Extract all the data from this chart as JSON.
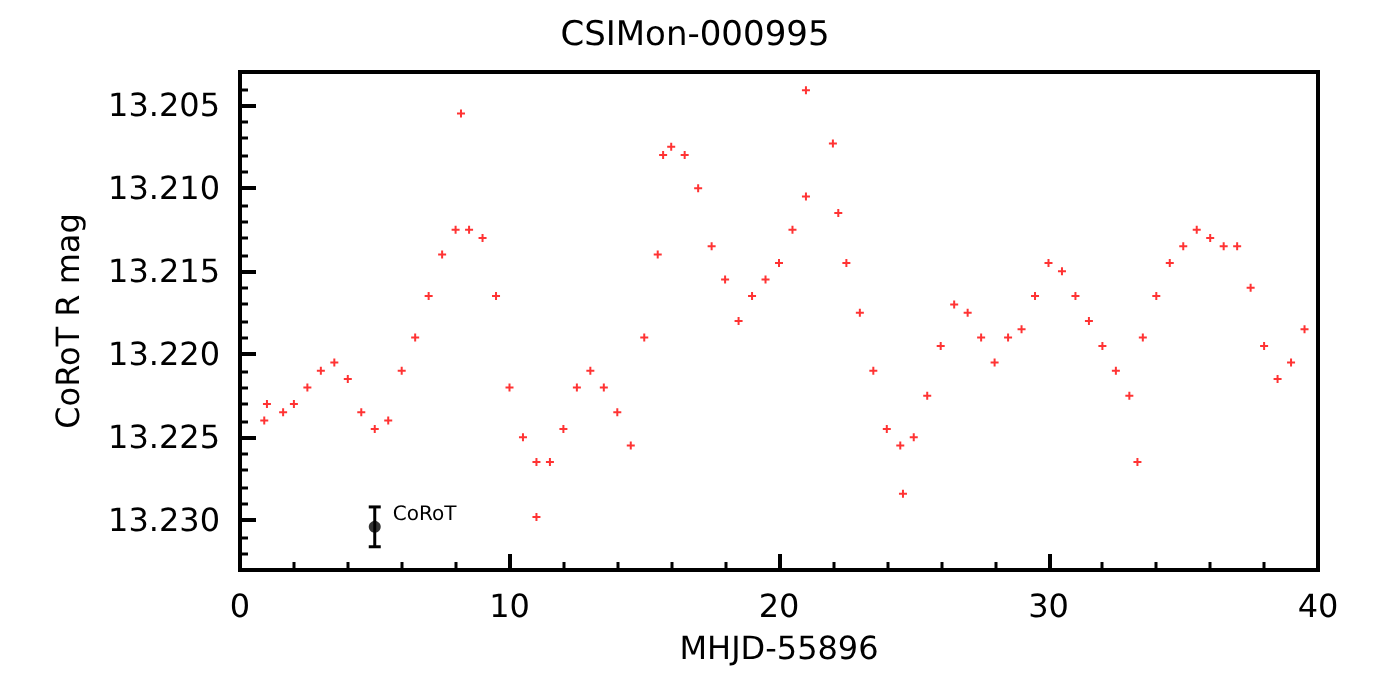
{
  "chart_data": {
    "type": "scatter",
    "title": "CSIMon-000995",
    "xlabel": "MHJD-55896",
    "ylabel": "CoRoT R mag",
    "xlim": [
      0,
      40
    ],
    "xticks": [
      0,
      10,
      20,
      30,
      40
    ],
    "ylim": [
      13.233,
      13.203
    ],
    "yticks": [
      13.205,
      {
        "value": 13.21,
        "label": "13.210"
      },
      13.215,
      {
        "value": 13.22,
        "label": "13.220"
      },
      13.225,
      {
        "value": 13.23,
        "label": "13.230"
      }
    ],
    "grid": false,
    "marker": "cross",
    "annotations": [
      {
        "text": "CoRoT",
        "x": 5,
        "y": 13.2304
      }
    ],
    "series": [
      {
        "color": "#ff0000",
        "x": [
          0.9,
          1.0,
          1.6,
          2.0,
          2.5,
          3.0,
          3.5,
          4.0,
          4.5,
          5.0,
          5.5,
          6.0,
          6.5,
          7.0,
          7.5,
          8.0,
          8.2,
          8.5,
          9.0,
          9.5,
          10.0,
          10.5,
          11.0,
          11.0,
          11.5,
          12.0,
          12.5,
          13.0,
          13.5,
          14.0,
          14.5,
          15.0,
          15.5,
          15.7,
          16.0,
          16.5,
          17.0,
          17.5,
          18.0,
          18.5,
          19.0,
          19.5,
          20.0,
          20.5,
          21.0,
          21.0,
          22.0,
          22.2,
          22.5,
          23.0,
          23.5,
          24.0,
          24.5,
          24.6,
          25.0,
          25.5,
          26.0,
          26.5,
          27.0,
          27.5,
          28.0,
          28.5,
          29.0,
          29.5,
          30.0,
          30.5,
          31.0,
          31.5,
          32.0,
          32.5,
          33.0,
          33.3,
          33.5,
          34.0,
          34.5,
          35.0,
          35.5,
          36.0,
          36.5,
          37.0,
          37.5,
          38.0,
          38.5,
          39.0,
          39.5
        ],
        "values": [
          13.224,
          13.223,
          13.2235,
          13.223,
          13.222,
          13.221,
          13.2205,
          13.2215,
          13.2235,
          13.2245,
          13.224,
          13.221,
          13.219,
          13.2165,
          13.214,
          13.2125,
          13.2055,
          13.2125,
          13.213,
          13.2165,
          13.222,
          13.225,
          13.2265,
          13.2298,
          13.2265,
          13.2245,
          13.222,
          13.221,
          13.222,
          13.2235,
          13.2255,
          13.219,
          13.214,
          13.208,
          13.2075,
          13.208,
          13.21,
          13.2135,
          13.2155,
          13.218,
          13.2165,
          13.2155,
          13.2145,
          13.2125,
          13.2105,
          13.2041,
          13.2073,
          13.2115,
          13.2145,
          13.2175,
          13.221,
          13.2245,
          13.2255,
          13.2284,
          13.225,
          13.2225,
          13.2195,
          13.217,
          13.2175,
          13.219,
          13.2205,
          13.219,
          13.2185,
          13.2165,
          13.2145,
          13.215,
          13.2165,
          13.218,
          13.2195,
          13.221,
          13.2225,
          13.2265,
          13.219,
          13.2165,
          13.2145,
          13.2135,
          13.2125,
          13.213,
          13.2135,
          13.2135,
          13.216,
          13.2195,
          13.2215,
          13.2205,
          13.2185
        ]
      },
      {
        "color": "#000000",
        "marker": "circle",
        "x": [
          5
        ],
        "values": [
          13.2304
        ],
        "errors": [
          0.0012
        ]
      }
    ]
  }
}
